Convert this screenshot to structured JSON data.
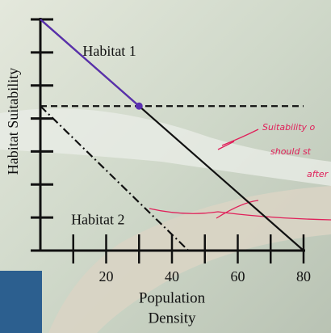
{
  "chart_data": {
    "type": "line",
    "xlabel": [
      "Population",
      "Density"
    ],
    "ylabel": "Habitat Suitability",
    "xlim": [
      0,
      80
    ],
    "ylim": [
      0,
      7
    ],
    "xticks": [
      20,
      40,
      60,
      80
    ],
    "x_minor_ticks": [
      10,
      30,
      50,
      70
    ],
    "yticks": [
      0,
      1,
      2,
      3,
      4,
      5,
      6,
      7
    ],
    "series": [
      {
        "color": "#111111",
        "style": "solid",
        "x": [
          0,
          80
        ],
        "values": [
          7,
          0
        ]
      },
      {
        "color": "#111111",
        "style": "dashed",
        "x": [
          0,
          80
        ],
        "values": [
          4.375,
          4.375
        ]
      },
      {
        "color": "#111111",
        "style": "dashdot",
        "x": [
          0,
          45
        ],
        "values": [
          4.375,
          0
        ]
      },
      {
        "color": "#5a2fb0",
        "style": "solid",
        "x": [
          0,
          30
        ],
        "values": [
          7,
          4.375
        ]
      }
    ],
    "points": [
      {
        "color": "#5a2fb0",
        "x": 30,
        "value": 4.375
      }
    ],
    "labels": [
      {
        "text": "Habitat 1",
        "x": 21,
        "value": 6
      },
      {
        "text": "Habitat 2",
        "x": 17.5,
        "value": 0.9
      }
    ],
    "handwriting": [
      "Suitability o",
      "should st",
      "after"
    ]
  }
}
